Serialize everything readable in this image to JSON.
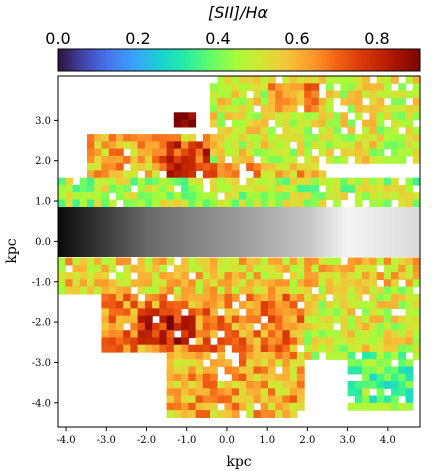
{
  "chart_data": {
    "type": "heatmap",
    "title": "",
    "colorbar": {
      "label": "[SII]/Hα",
      "range": [
        0.0,
        0.9
      ],
      "ticks": [
        0.0,
        0.2,
        0.4,
        0.6,
        0.8
      ],
      "tick_labels": [
        "0.0",
        "0.2",
        "0.4",
        "0.6",
        "0.8"
      ],
      "colormap": "turbo",
      "position": "top"
    },
    "xlabel": "kpc",
    "ylabel": "kpc",
    "xlim": [
      -4.2,
      4.8
    ],
    "ylim": [
      -4.6,
      4.1
    ],
    "xticks": [
      -4.0,
      -3.0,
      -2.0,
      -1.0,
      0.0,
      1.0,
      2.0,
      3.0,
      4.0
    ],
    "xtick_labels": [
      "-4.0",
      "-3.0",
      "-2.0",
      "-1.0",
      "0.0",
      "1.0",
      "2.0",
      "3.0",
      "4.0"
    ],
    "yticks": [
      3.0,
      2.0,
      1.0,
      0.0,
      -1.0,
      -2.0,
      -3.0,
      -4.0
    ],
    "ytick_labels": [
      "3.0",
      "2.0",
      "1.0",
      "0.0",
      "-1.0",
      "-2.0",
      "-3.0",
      "-4.0"
    ],
    "grid": false,
    "midplane_band_y": [
      -0.42,
      0.78
    ],
    "regions": [
      {
        "x": [
          -4.2,
          4.8
        ],
        "y": [
          0.8,
          1.6
        ],
        "ratio": 0.45
      },
      {
        "x": [
          -3.5,
          2.5
        ],
        "y": [
          1.6,
          2.6
        ],
        "ratio": 0.6
      },
      {
        "x": [
          -1.7,
          -0.2
        ],
        "y": [
          1.5,
          2.4
        ],
        "ratio": 0.75
      },
      {
        "x": [
          -1.4,
          -0.7
        ],
        "y": [
          2.8,
          3.2
        ],
        "ratio": 0.85
      },
      {
        "x": [
          -0.5,
          4.8
        ],
        "y": [
          2.0,
          4.1
        ],
        "ratio": 0.5
      },
      {
        "x": [
          1.0,
          2.5
        ],
        "y": [
          3.2,
          4.0
        ],
        "ratio": 0.65
      },
      {
        "x": [
          -4.2,
          4.8
        ],
        "y": [
          -1.3,
          -0.45
        ],
        "ratio": 0.55
      },
      {
        "x": [
          -3.2,
          2.8
        ],
        "y": [
          -2.8,
          -1.3
        ],
        "ratio": 0.65
      },
      {
        "x": [
          -2.2,
          -0.8
        ],
        "y": [
          -2.6,
          -1.6
        ],
        "ratio": 0.8
      },
      {
        "x": [
          -1.5,
          2.0
        ],
        "y": [
          -4.3,
          -2.8
        ],
        "ratio": 0.6
      },
      {
        "x": [
          2.0,
          4.8
        ],
        "y": [
          -3.0,
          -1.2
        ],
        "ratio": 0.5
      },
      {
        "x": [
          3.0,
          4.6
        ],
        "y": [
          -4.1,
          -2.8
        ],
        "ratio": 0.38
      }
    ]
  }
}
